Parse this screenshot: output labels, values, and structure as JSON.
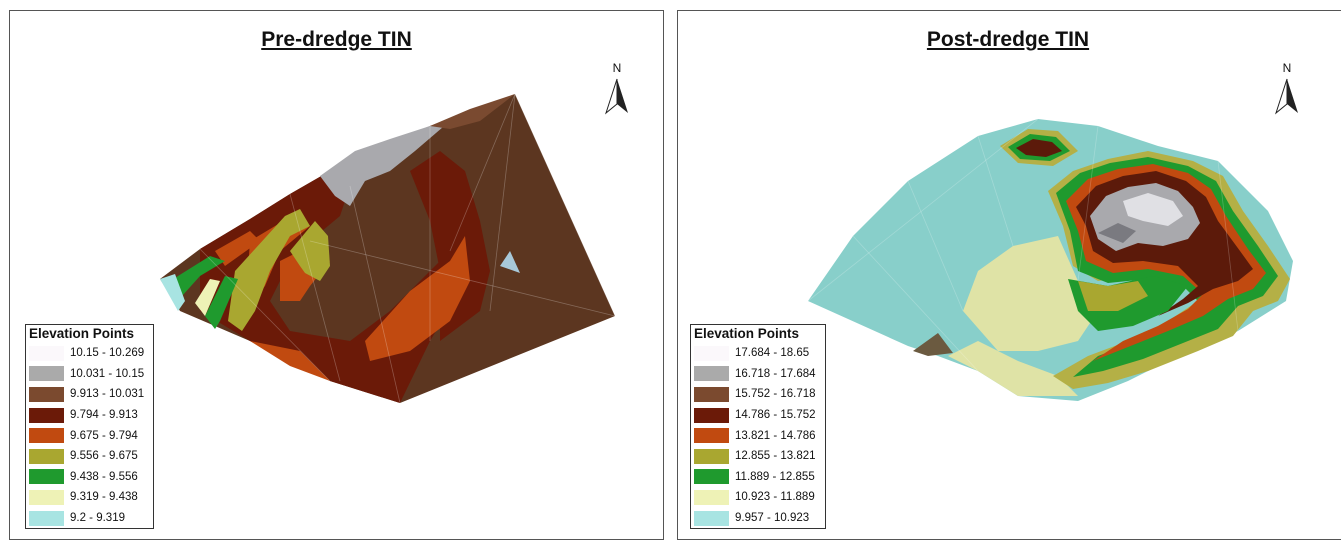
{
  "panels": [
    {
      "title": "Pre-dredge TIN",
      "north_label": "N",
      "legend": {
        "title": "Elevation Points",
        "classes": [
          {
            "label": "10.15 - 10.269",
            "color": "#fbf8fb"
          },
          {
            "label": "10.031 - 10.15",
            "color": "#aaaaaa"
          },
          {
            "label": "9.913 - 10.031",
            "color": "#7b4a2f"
          },
          {
            "label": "9.794 - 9.913",
            "color": "#6b1a08"
          },
          {
            "label": "9.675 - 9.794",
            "color": "#c14a10"
          },
          {
            "label": "9.556 - 9.675",
            "color": "#a9a730"
          },
          {
            "label": "9.438 - 9.556",
            "color": "#1f9a2e"
          },
          {
            "label": "9.319 - 9.438",
            "color": "#eef2b6"
          },
          {
            "label": "9.2 - 9.319",
            "color": "#a8e4e2"
          }
        ]
      }
    },
    {
      "title": "Post-dredge TIN",
      "north_label": "N",
      "legend": {
        "title": "Elevation Points",
        "classes": [
          {
            "label": "17.684 - 18.65",
            "color": "#fbf8fb"
          },
          {
            "label": "16.718 - 17.684",
            "color": "#aaaaaa"
          },
          {
            "label": "15.752 - 16.718",
            "color": "#7b4a2f"
          },
          {
            "label": "14.786 - 15.752",
            "color": "#6b1a08"
          },
          {
            "label": "13.821 - 14.786",
            "color": "#c14a10"
          },
          {
            "label": "12.855 - 13.821",
            "color": "#a9a730"
          },
          {
            "label": "11.889 - 12.855",
            "color": "#1f9a2e"
          },
          {
            "label": "10.923 - 11.889",
            "color": "#eef2b6"
          },
          {
            "label": "9.957 - 10.923",
            "color": "#a8e4e2"
          }
        ]
      }
    }
  ]
}
